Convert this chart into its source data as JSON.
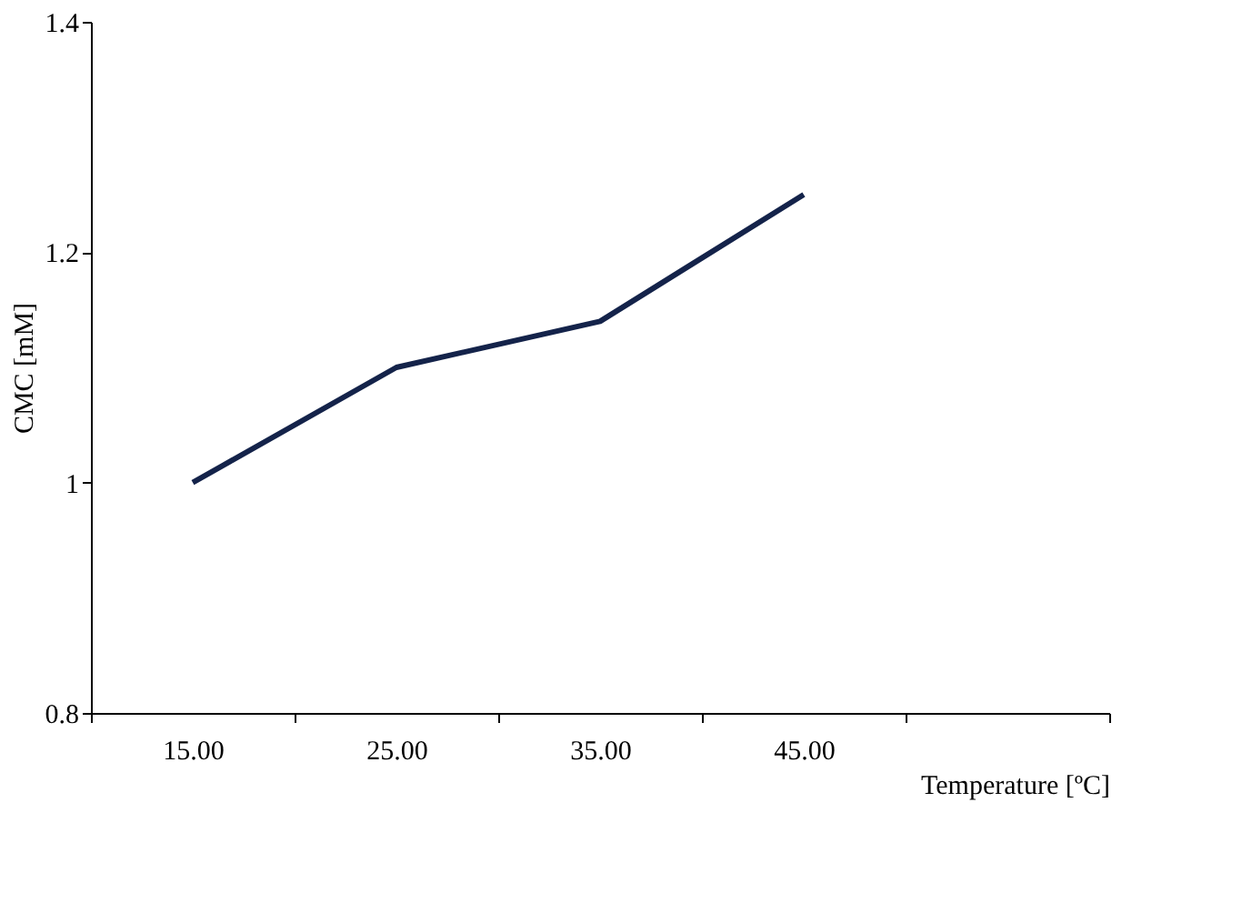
{
  "chart_data": {
    "type": "line",
    "xlabel": "Temperature [ºC]",
    "ylabel": "CMC [mM]",
    "categories": [
      "15.00",
      "25.00",
      "35.00",
      "45.00",
      null
    ],
    "series": [
      {
        "color": "#14234a",
        "values": [
          1.0,
          1.1,
          1.14,
          1.25,
          null
        ]
      }
    ],
    "ylim": [
      0.8,
      1.4
    ],
    "yticks": [
      0.8,
      1,
      1.2,
      1.4
    ],
    "grid": false,
    "legend": false,
    "marker": "none",
    "line_style": "solid"
  }
}
